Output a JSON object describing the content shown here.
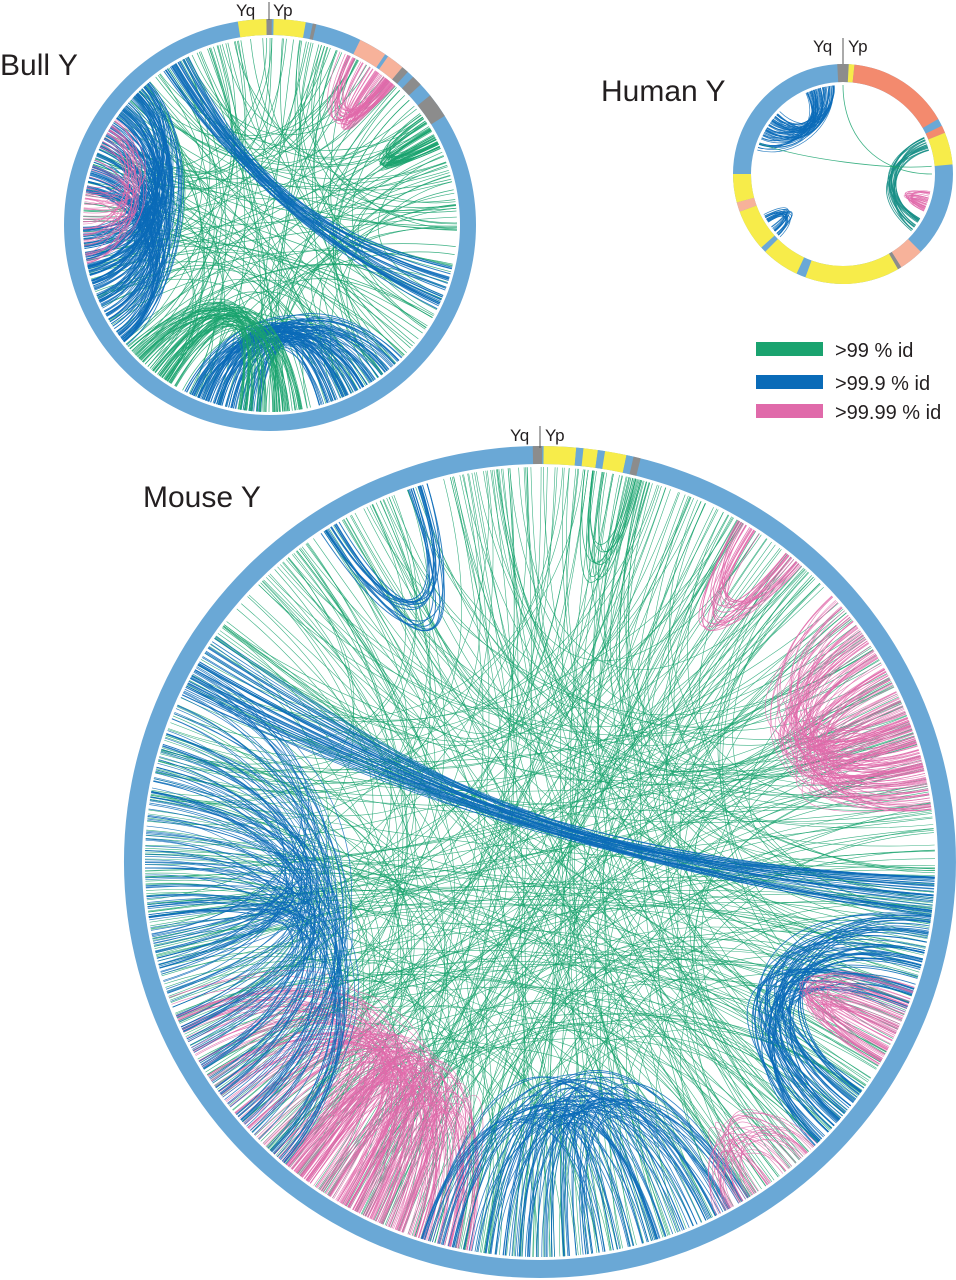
{
  "plots": [
    {
      "id": "bull",
      "title": "Bull Y",
      "arm_left": "Yq",
      "arm_right": "Yp"
    },
    {
      "id": "human",
      "title": "Human Y",
      "arm_left": "Yq",
      "arm_right": "Yp"
    },
    {
      "id": "mouse",
      "title": "Mouse Y",
      "arm_left": "Yq",
      "arm_right": "Yp"
    }
  ],
  "legend": [
    {
      "label": ">99 % id",
      "color": "#1aa36f"
    },
    {
      "label": ">99.9 % id",
      "color": "#0a6bb8"
    },
    {
      "label": ">99.99 % id",
      "color": "#e06aaa"
    }
  ],
  "colors": {
    "ring": "#6aa8d6",
    "yellow": "#f7ec4a",
    "salmon": "#f38a6e",
    "light_salmon": "#f7b29a",
    "gray": "#8c8c8c"
  }
}
